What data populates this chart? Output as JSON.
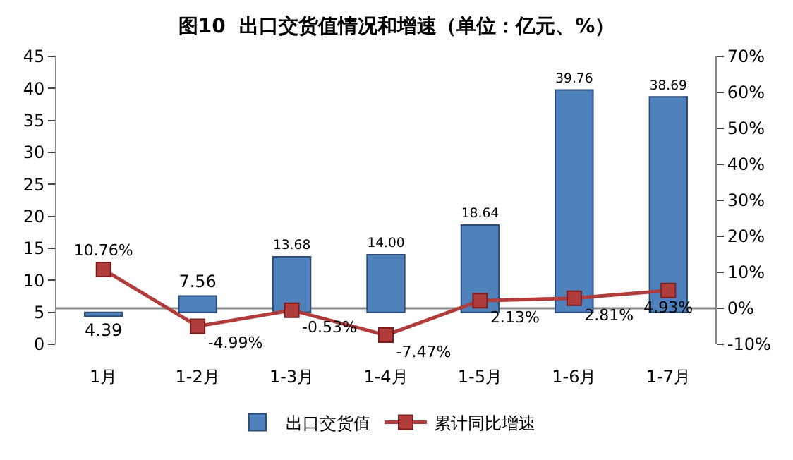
{
  "chart_data": {
    "type": "bar",
    "title": "图10  出口交货值情况和增速（单位：亿元、%）",
    "categories": [
      "1月",
      "1-2月",
      "1-3月",
      "1-4月",
      "1-5月",
      "1-6月",
      "1-7月"
    ],
    "series": [
      {
        "name": "出口交货值",
        "color": "#4f81bd",
        "base": [
          5,
          5,
          5,
          5,
          5,
          5,
          5
        ],
        "values": [
          -0.61,
          2.56,
          8.68,
          9.0,
          13.64,
          34.76,
          33.69
        ],
        "value_labels": [
          "4.39",
          "7.56",
          "13.68",
          "14.00",
          "18.64",
          "39.76",
          "38.69"
        ]
      },
      {
        "name": "累计同比增速",
        "type": "line",
        "axis": "y2",
        "color": "#b03c3c",
        "marker": "square",
        "values": [
          10.76,
          -4.99,
          -0.53,
          -7.47,
          2.13,
          2.81,
          4.93
        ],
        "value_labels": [
          "10.76%",
          "-4.99%",
          "-0.53%",
          "-7.47%",
          "2.13%",
          "2.81%",
          "4.93%"
        ]
      }
    ],
    "ylim": [
      0,
      45
    ],
    "yticks": [
      0,
      5,
      10,
      15,
      20,
      25,
      30,
      35,
      40,
      45
    ],
    "y2lim": [
      -10,
      70
    ],
    "y2ticks": [
      {
        "value": -10,
        "label": "-10%"
      },
      {
        "value": 0,
        "label": "0%"
      },
      {
        "value": 10,
        "label": "10%"
      },
      {
        "value": 20,
        "label": "20%"
      },
      {
        "value": 30,
        "label": "30%"
      },
      {
        "value": 40,
        "label": "40%"
      },
      {
        "value": 50,
        "label": "50%"
      },
      {
        "value": 60,
        "label": "60%"
      },
      {
        "value": 70,
        "label": "70%"
      }
    ],
    "ref_lines": [
      {
        "axis": "y2",
        "value": 0,
        "color": "#888888"
      }
    ],
    "grid": false,
    "legend": "bottom"
  }
}
